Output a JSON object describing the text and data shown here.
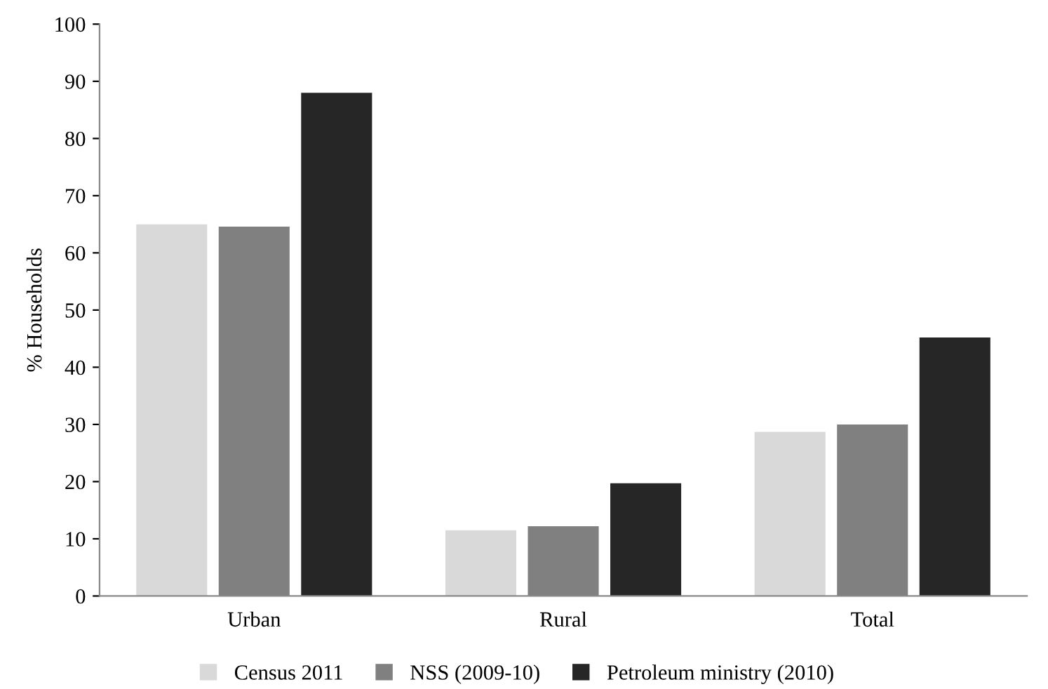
{
  "chart_data": {
    "type": "bar",
    "ylabel": "% Households",
    "categories": [
      "Urban",
      "Rural",
      "Total"
    ],
    "series": [
      {
        "name": "Census 2011",
        "color": "#d9d9d9",
        "values": [
          65,
          11.5,
          28.7
        ]
      },
      {
        "name": "NSS (2009-10)",
        "color": "#808080",
        "values": [
          64.6,
          12.2,
          30
        ]
      },
      {
        "name": "Petroleum ministry (2010)",
        "color": "#262626",
        "values": [
          88,
          19.7,
          45.2
        ]
      }
    ],
    "ylim": [
      0,
      100
    ],
    "yticks": [
      0,
      10,
      20,
      30,
      40,
      50,
      60,
      70,
      80,
      90,
      100
    ],
    "grid": false,
    "legend": "bottom"
  }
}
